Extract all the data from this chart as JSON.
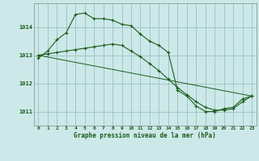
{
  "title": "Graphe pression niveau de la mer (hPa)",
  "background_color": "#cce8e8",
  "grid_color": "#a0c8c8",
  "line_color": "#1a5c1a",
  "xlim": [
    -0.5,
    23.5
  ],
  "ylim": [
    1010.5,
    1014.85
  ],
  "yticks": [
    1011,
    1012,
    1013,
    1014
  ],
  "xticks": [
    0,
    1,
    2,
    3,
    4,
    5,
    6,
    7,
    8,
    9,
    10,
    11,
    12,
    13,
    14,
    15,
    16,
    17,
    18,
    19,
    20,
    21,
    22,
    23
  ],
  "series": [
    {
      "x": [
        0,
        1,
        2,
        3,
        4,
        5,
        6,
        7,
        8,
        9,
        10,
        11,
        12,
        13,
        14,
        15,
        16,
        17,
        18,
        19,
        20,
        21,
        22,
        23
      ],
      "y": [
        1012.9,
        1013.15,
        1013.55,
        1013.8,
        1014.45,
        1014.5,
        1014.3,
        1014.3,
        1014.25,
        1014.1,
        1014.05,
        1013.75,
        1013.5,
        1013.35,
        1013.1,
        1011.75,
        1011.55,
        1011.2,
        1011.0,
        1011.0,
        1011.1,
        1011.15,
        1011.45,
        1011.55
      ]
    },
    {
      "x": [
        0,
        1,
        2,
        3,
        4,
        5,
        6,
        7,
        8,
        9,
        10,
        11,
        12,
        13,
        14,
        15,
        16,
        17,
        18,
        19,
        20,
        21,
        22,
        23
      ],
      "y": [
        1013.0,
        1013.05,
        1013.1,
        1013.15,
        1013.2,
        1013.25,
        1013.3,
        1013.35,
        1013.4,
        1013.35,
        1013.15,
        1012.95,
        1012.7,
        1012.45,
        1012.15,
        1011.85,
        1011.6,
        1011.35,
        1011.15,
        1011.05,
        1011.05,
        1011.1,
        1011.35,
        1011.55
      ]
    },
    {
      "x": [
        0,
        23
      ],
      "y": [
        1013.0,
        1011.55
      ]
    }
  ]
}
